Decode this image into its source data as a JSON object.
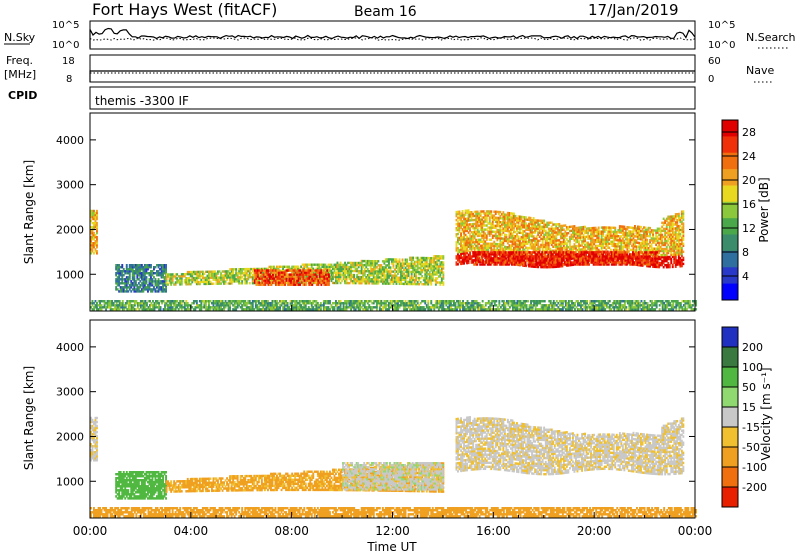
{
  "header": {
    "station": "Fort Hays West (fitACF)",
    "beam": "Beam 16",
    "date": "17/Jan/2019"
  },
  "small_panels": {
    "nsky_label": "N.Sky",
    "nsky_ticks": [
      "10^5",
      "10^0"
    ],
    "nsearch_label": "N.Search",
    "nsearch_ticks": [
      "10^5",
      "10^0"
    ],
    "freq_label_1": "Freq.",
    "freq_label_2": "[MHz]",
    "freq_ticks": [
      "18",
      "8"
    ],
    "nave_label": "Nave",
    "nave_ticks": [
      "60",
      "0"
    ],
    "cpid_label": "CPID",
    "cpid_text": "themis -3300 IF"
  },
  "chart_data": [
    {
      "type": "heatmap",
      "panel": "power",
      "ylabel": "Slant Range [km]",
      "y_ticks": [
        1000,
        2000,
        3000,
        4000
      ],
      "ylim": [
        180,
        4600
      ],
      "colorbar_label": "Power [dB]",
      "colorbar_ticks": [
        4,
        8,
        12,
        16,
        20,
        24,
        28
      ],
      "colorbar_colors": [
        "#0000ff",
        "#2838c8",
        "#2e6fa0",
        "#3a8c6a",
        "#4aa84a",
        "#8cc83c",
        "#e8d820",
        "#f0a020",
        "#f07010",
        "#f03008",
        "#e00000"
      ],
      "regions": [
        {
          "t": [
            0.0,
            0.3
          ],
          "r": [
            1450,
            2400
          ],
          "level": 20
        },
        {
          "t": [
            1.0,
            3.0
          ],
          "r": [
            600,
            1200
          ],
          "level": 8
        },
        {
          "t": [
            3.0,
            14.0
          ],
          "r": [
            750,
            1400
          ],
          "level": 16
        },
        {
          "t": [
            6.5,
            9.5
          ],
          "r": [
            750,
            1100
          ],
          "level": 26
        },
        {
          "t": [
            14.5,
            23.5
          ],
          "r": [
            1150,
            2500
          ],
          "level": 20
        },
        {
          "t": [
            15.2,
            22.5
          ],
          "r": [
            1200,
            1500
          ],
          "level": 28
        },
        {
          "t": [
            0.0,
            24.0
          ],
          "r": [
            200,
            400
          ],
          "level": 12
        }
      ]
    },
    {
      "type": "heatmap",
      "panel": "velocity",
      "ylabel": "Slant Range [km]",
      "xlabel": "Time UT",
      "x_ticks": [
        "00:00",
        "04:00",
        "08:00",
        "12:00",
        "16:00",
        "20:00",
        "00:00"
      ],
      "y_ticks": [
        1000,
        2000,
        3000,
        4000
      ],
      "ylim": [
        180,
        4600
      ],
      "colorbar_label": "Velocity [m s⁻¹]",
      "colorbar_ticks": [
        200,
        100,
        50,
        15,
        -15,
        -50,
        -100,
        -200
      ],
      "colorbar_colors": [
        "#2030c0",
        "#3a7a40",
        "#50b840",
        "#90d870",
        "#c8c8c8",
        "#f0c030",
        "#f0a020",
        "#f07010",
        "#e82000"
      ],
      "regions": [
        {
          "t": [
            0.0,
            0.3
          ],
          "r": [
            1450,
            2400
          ],
          "value": -5
        },
        {
          "t": [
            1.0,
            3.0
          ],
          "r": [
            600,
            1200
          ],
          "value": 60
        },
        {
          "t": [
            3.0,
            14.0
          ],
          "r": [
            750,
            1400
          ],
          "value": -40
        },
        {
          "t": [
            10.0,
            14.0
          ],
          "r": [
            800,
            1400
          ],
          "value": 0
        },
        {
          "t": [
            14.5,
            23.5
          ],
          "r": [
            1150,
            2500
          ],
          "value": -5
        },
        {
          "t": [
            0.0,
            24.0
          ],
          "r": [
            200,
            400
          ],
          "value": -60
        }
      ]
    }
  ]
}
